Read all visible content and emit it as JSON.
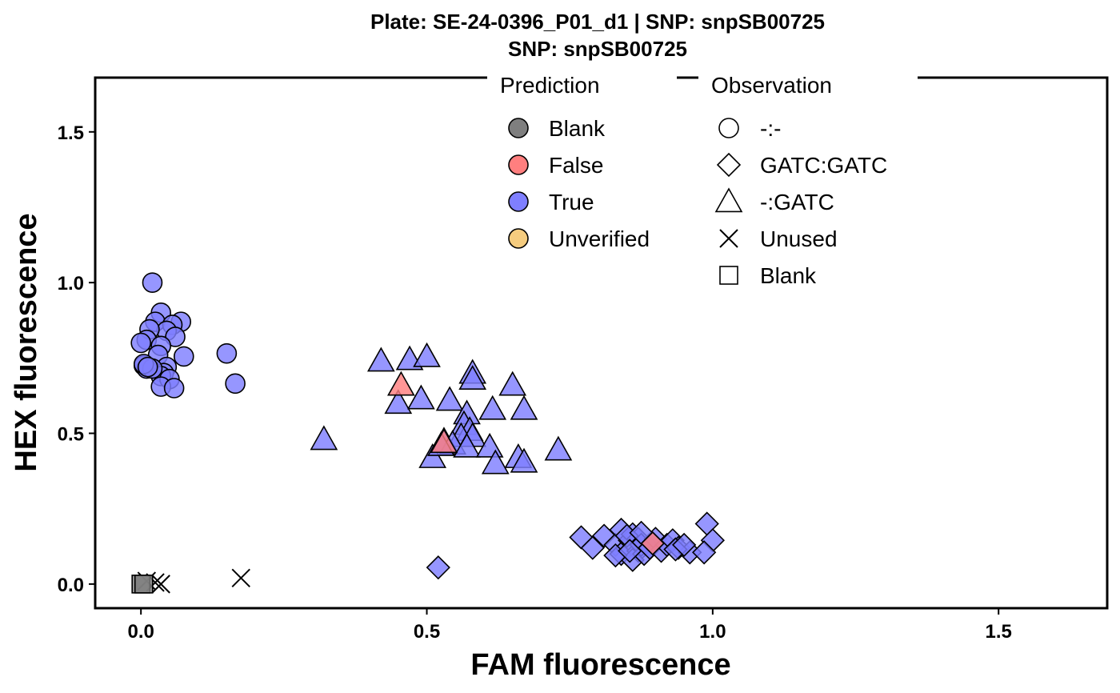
{
  "chart_data": {
    "type": "scatter",
    "title": "Plate: SE-24-0396_P01_d1 | SNP: snpSB00725",
    "subtitle": "SNP:  snpSB00725",
    "xlabel": "FAM fluorescence",
    "ylabel": "HEX fluorescence",
    "xlim": [
      -0.08,
      1.69
    ],
    "ylim": [
      -0.08,
      1.68
    ],
    "xticks": [
      0.0,
      0.5,
      1.0,
      1.5
    ],
    "xtick_labels": [
      "0.0",
      "0.5",
      "1.0",
      "1.5"
    ],
    "yticks": [
      0.0,
      0.5,
      1.0,
      1.5
    ],
    "ytick_labels": [
      "0.0",
      "0.5",
      "1.0",
      "1.5"
    ],
    "grid": false,
    "legend_placement": "top-center inside",
    "legends": {
      "prediction": {
        "title": "Prediction",
        "items": [
          {
            "label": "Blank",
            "key": "Blank",
            "color": "#7f7f7f"
          },
          {
            "label": "False",
            "key": "False",
            "color": "#ff7f7f"
          },
          {
            "label": "True",
            "key": "True",
            "color": "#7f7fff"
          },
          {
            "label": "Unverified",
            "key": "Unverified",
            "color": "#f5cc7f"
          }
        ]
      },
      "observation": {
        "title": "Observation",
        "items": [
          {
            "label": "-:-",
            "shape": "circle"
          },
          {
            "label": "GATC:GATC",
            "shape": "diamond"
          },
          {
            "label": "-:GATC",
            "shape": "triangle"
          },
          {
            "label": "Unused",
            "shape": "cross"
          },
          {
            "label": "Blank",
            "shape": "square"
          }
        ]
      }
    },
    "series": [
      {
        "prediction": "True",
        "observation": "-:-",
        "points": [
          [
            0.02,
            1.0
          ],
          [
            0.035,
            0.9
          ],
          [
            0.025,
            0.87
          ],
          [
            0.07,
            0.87
          ],
          [
            0.055,
            0.86
          ],
          [
            0.045,
            0.84
          ],
          [
            0.015,
            0.845
          ],
          [
            0.06,
            0.82
          ],
          [
            0.01,
            0.81
          ],
          [
            0.0,
            0.8
          ],
          [
            0.035,
            0.79
          ],
          [
            0.03,
            0.76
          ],
          [
            0.075,
            0.755
          ],
          [
            0.005,
            0.725
          ],
          [
            0.01,
            0.715
          ],
          [
            0.045,
            0.72
          ],
          [
            0.04,
            0.7
          ],
          [
            0.035,
            0.69
          ],
          [
            0.05,
            0.68
          ],
          [
            0.035,
            0.655
          ],
          [
            0.058,
            0.65
          ],
          [
            0.02,
            0.715
          ],
          [
            0.005,
            0.73
          ],
          [
            0.012,
            0.72
          ],
          [
            0.15,
            0.765
          ],
          [
            0.165,
            0.665
          ]
        ]
      },
      {
        "prediction": "True",
        "observation": "-:GATC",
        "points": [
          [
            0.42,
            0.74
          ],
          [
            0.47,
            0.745
          ],
          [
            0.5,
            0.755
          ],
          [
            0.58,
            0.7
          ],
          [
            0.58,
            0.68
          ],
          [
            0.65,
            0.66
          ],
          [
            0.45,
            0.6
          ],
          [
            0.49,
            0.615
          ],
          [
            0.54,
            0.61
          ],
          [
            0.57,
            0.565
          ],
          [
            0.615,
            0.58
          ],
          [
            0.67,
            0.58
          ],
          [
            0.32,
            0.48
          ],
          [
            0.565,
            0.53
          ],
          [
            0.575,
            0.51
          ],
          [
            0.56,
            0.49
          ],
          [
            0.58,
            0.49
          ],
          [
            0.53,
            0.475
          ],
          [
            0.545,
            0.465
          ],
          [
            0.57,
            0.455
          ],
          [
            0.61,
            0.455
          ],
          [
            0.51,
            0.42
          ],
          [
            0.62,
            0.4
          ],
          [
            0.66,
            0.42
          ],
          [
            0.67,
            0.405
          ],
          [
            0.73,
            0.445
          ],
          [
            0.525,
            0.46
          ]
        ]
      },
      {
        "prediction": "False",
        "observation": "-:GATC",
        "points": [
          [
            0.455,
            0.66
          ],
          [
            0.53,
            0.47
          ]
        ]
      },
      {
        "prediction": "True",
        "observation": "GATC:GATC",
        "points": [
          [
            0.52,
            0.055
          ],
          [
            0.77,
            0.155
          ],
          [
            0.79,
            0.12
          ],
          [
            0.81,
            0.16
          ],
          [
            0.83,
            0.13
          ],
          [
            0.84,
            0.18
          ],
          [
            0.84,
            0.1
          ],
          [
            0.85,
            0.12
          ],
          [
            0.855,
            0.145
          ],
          [
            0.86,
            0.165
          ],
          [
            0.87,
            0.11
          ],
          [
            0.87,
            0.15
          ],
          [
            0.875,
            0.13
          ],
          [
            0.86,
            0.08
          ],
          [
            0.88,
            0.1
          ],
          [
            0.89,
            0.12
          ],
          [
            0.9,
            0.15
          ],
          [
            0.91,
            0.11
          ],
          [
            0.92,
            0.13
          ],
          [
            0.93,
            0.145
          ],
          [
            0.94,
            0.12
          ],
          [
            0.96,
            0.105
          ],
          [
            0.99,
            0.2
          ],
          [
            1.0,
            0.145
          ],
          [
            0.985,
            0.105
          ],
          [
            0.85,
            0.16
          ],
          [
            0.875,
            0.17
          ],
          [
            0.83,
            0.095
          ],
          [
            0.855,
            0.11
          ],
          [
            0.895,
            0.135
          ],
          [
            0.935,
            0.115
          ],
          [
            0.95,
            0.13
          ]
        ]
      },
      {
        "prediction": "False",
        "observation": "GATC:GATC",
        "points": [
          [
            0.895,
            0.135
          ]
        ]
      },
      {
        "prediction": "Blank",
        "observation": "Unused",
        "points": [
          [
            0.01,
            0.01
          ],
          [
            0.025,
            0.005
          ],
          [
            0.035,
            0.0
          ],
          [
            0.175,
            0.02
          ]
        ]
      },
      {
        "prediction": "Blank",
        "observation": "Blank",
        "points": [
          [
            0.0,
            0.0
          ],
          [
            0.005,
            0.0
          ]
        ]
      }
    ]
  }
}
